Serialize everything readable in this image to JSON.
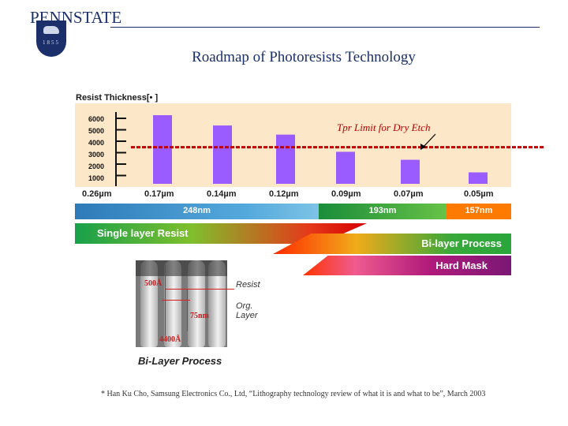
{
  "header": {
    "logo_text": "PENNSTATE",
    "logo_year": "1855",
    "title": "Roadmap of Photoresists Technology"
  },
  "chart_data": {
    "type": "bar",
    "title": "Roadmap of Photoresists Technology",
    "ylabel": "Resist Thickness[• ]",
    "categories": [
      "0.26µm",
      "0.17µm",
      "0.14µm",
      "0.12µm",
      "0.09µm",
      "0.07µm",
      "0.05µm"
    ],
    "values": [
      0,
      6000,
      5100,
      4300,
      2800,
      2100,
      1000
    ],
    "yticks": [
      6000,
      5000,
      4000,
      3000,
      2000,
      1000
    ],
    "ylim": [
      0,
      6500
    ],
    "threshold": {
      "label": "Tpr Limit for Dry Etch",
      "value": 3200,
      "color": "#c00000"
    },
    "bar_color": "#9b5cff",
    "background": "#fce7c8"
  },
  "wavelength_bands": [
    {
      "label": "248nm",
      "color": "#3a8fd0"
    },
    {
      "label": "193nm",
      "color": "#2fa340"
    },
    {
      "label": "157nm",
      "color": "#ff7a00"
    }
  ],
  "process_bands": {
    "single": "Single layer Resist",
    "bilayer": "Bi-layer Process",
    "hardmask": "Hard Mask"
  },
  "figure": {
    "ann_top": "500Å",
    "ann_mid": "75nm",
    "ann_bot": "4400Å",
    "label_resist": "Resist",
    "label_org": "Org.",
    "label_layer": "Layer",
    "caption": "Bi-Layer Process"
  },
  "footnote": "* Han Ku Cho, Samsung Electronics Co., Ltd, “Lithography technology review of what it is and what to be”, March 2003"
}
